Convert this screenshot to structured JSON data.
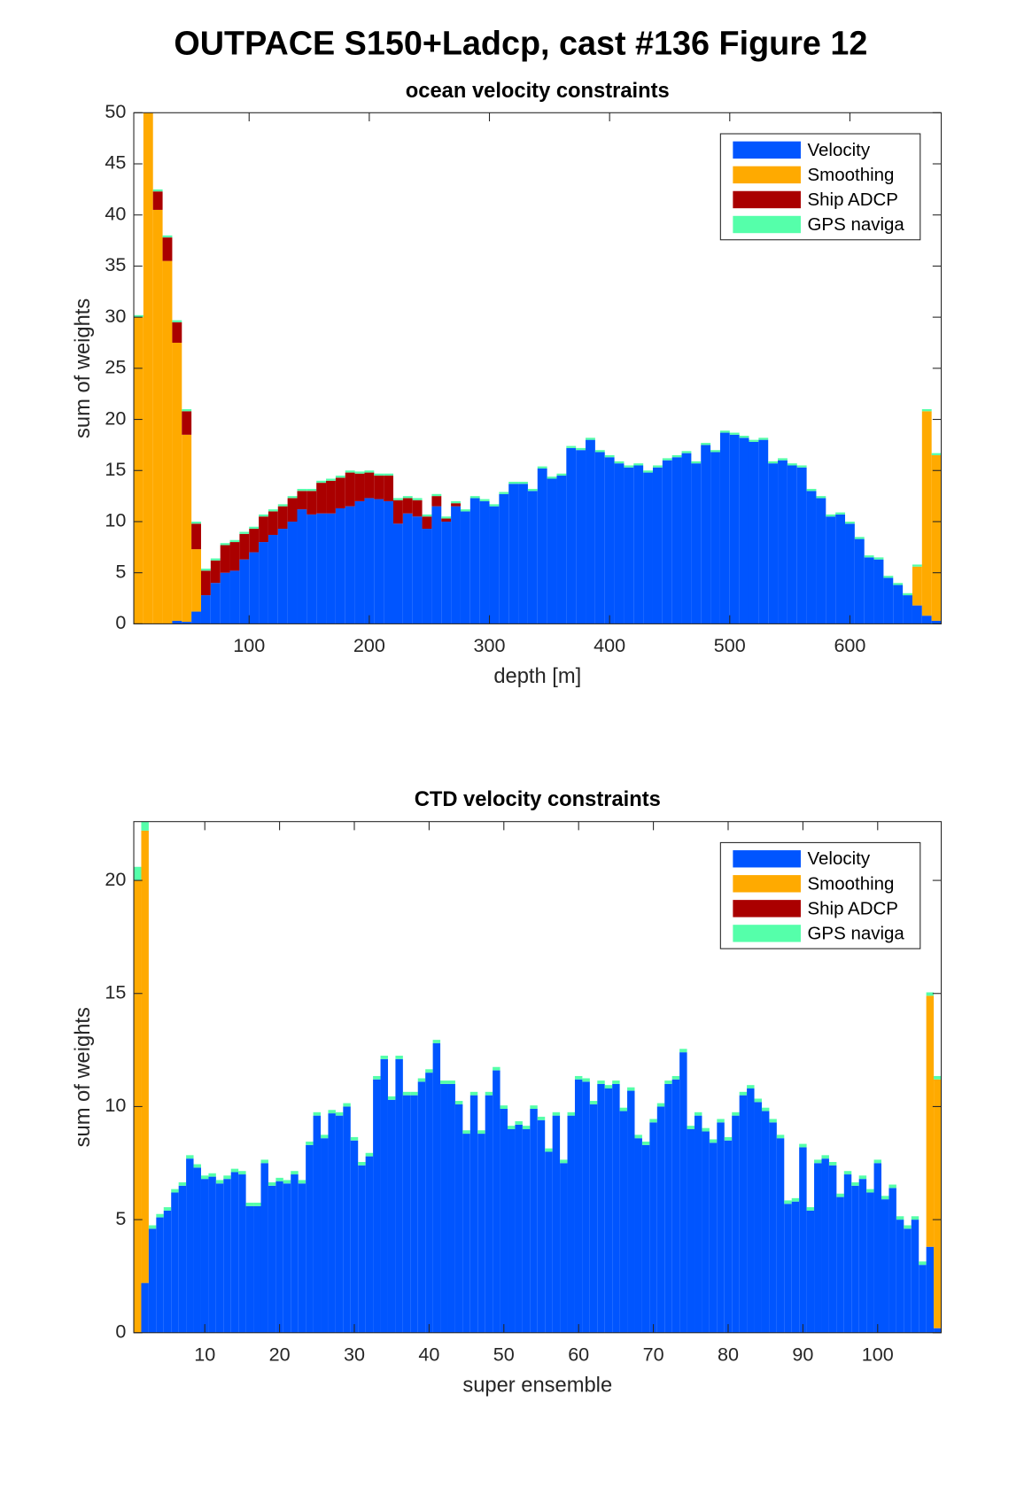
{
  "title": "OUTPACE S150+Ladcp, cast #136  Figure 12",
  "chart_data": [
    {
      "type": "bar",
      "stacked": true,
      "title": "ocean velocity constraints",
      "x_label": "depth [m]",
      "y_label": "sum of weights",
      "x": [
        8,
        16,
        24,
        32,
        40,
        48,
        56,
        64,
        72,
        80,
        88,
        96,
        104,
        112,
        120,
        128,
        136,
        144,
        152,
        160,
        168,
        176,
        184,
        192,
        200,
        208,
        216,
        224,
        232,
        240,
        248,
        256,
        264,
        272,
        280,
        288,
        296,
        304,
        312,
        320,
        328,
        336,
        344,
        352,
        360,
        368,
        376,
        384,
        392,
        400,
        408,
        416,
        424,
        432,
        440,
        448,
        456,
        464,
        472,
        480,
        488,
        496,
        504,
        512,
        520,
        528,
        536,
        544,
        552,
        560,
        568,
        576,
        584,
        592,
        600,
        608,
        616,
        624,
        632,
        640,
        648,
        656,
        664,
        672
      ],
      "series": [
        {
          "name": "Velocity",
          "color": "#0055ff",
          "values": [
            0,
            0,
            0,
            0,
            0.3,
            0.2,
            1.2,
            2.8,
            4,
            5,
            5.2,
            6.3,
            7,
            8,
            8.7,
            9.3,
            10,
            11.2,
            10.7,
            10.8,
            10.8,
            11.3,
            11.5,
            12,
            12.3,
            12.2,
            12,
            9.8,
            10.8,
            10.5,
            9.3,
            11.5,
            10,
            11.5,
            11,
            12.3,
            12,
            11.5,
            12.7,
            13.7,
            13.7,
            13,
            15.2,
            14.2,
            14.5,
            17.2,
            17,
            18,
            16.8,
            16.3,
            15.7,
            15.3,
            15.5,
            14.8,
            15.3,
            16,
            16.3,
            16.7,
            15.7,
            17.5,
            16.8,
            18.7,
            18.5,
            18.2,
            17.8,
            18,
            15.7,
            16,
            15.5,
            15.3,
            13,
            12.3,
            10.5,
            10.7,
            9.8,
            8.3,
            6.5,
            6.3,
            4.5,
            3.8,
            2.8,
            1.8,
            0.8,
            0.3
          ]
        },
        {
          "name": "Smoothing",
          "color": "#ffaa00",
          "values": [
            30,
            50,
            40.5,
            35.5,
            27.2,
            18.3,
            6.1,
            0,
            0,
            0,
            0,
            0,
            0,
            0,
            0,
            0,
            0,
            0,
            0,
            0,
            0,
            0,
            0,
            0,
            0,
            0,
            0,
            0,
            0,
            0,
            0,
            0,
            0,
            0,
            0,
            0,
            0,
            0,
            0,
            0,
            0,
            0,
            0,
            0,
            0,
            0,
            0,
            0,
            0,
            0,
            0,
            0,
            0,
            0,
            0,
            0,
            0,
            0,
            0,
            0,
            0,
            0,
            0,
            0,
            0,
            0,
            0,
            0,
            0,
            0,
            0,
            0,
            0,
            0,
            0,
            0,
            0,
            0,
            0,
            0,
            0,
            3.8,
            20,
            16.2
          ]
        },
        {
          "name": "Ship ADCP",
          "color": "#aa0000",
          "values": [
            0,
            0,
            1.8,
            2.3,
            2,
            2.3,
            2.5,
            2.4,
            2.2,
            2.7,
            2.8,
            2.5,
            2.3,
            2.5,
            2.3,
            2.2,
            2.3,
            1.8,
            2.3,
            3,
            3.2,
            3,
            3.3,
            2.7,
            2.5,
            2.3,
            2.5,
            2.3,
            1.5,
            1.6,
            1.2,
            1,
            0.3,
            0.3,
            0,
            0,
            0,
            0,
            0,
            0,
            0,
            0,
            0,
            0,
            0,
            0,
            0,
            0,
            0,
            0,
            0,
            0,
            0,
            0,
            0,
            0,
            0,
            0,
            0,
            0,
            0,
            0,
            0,
            0,
            0,
            0,
            0,
            0,
            0,
            0,
            0,
            0,
            0,
            0,
            0,
            0,
            0,
            0,
            0,
            0,
            0,
            0,
            0,
            0
          ]
        },
        {
          "name": "GPS naviga",
          "color": "#55ffaa",
          "values": [
            0.2,
            0.2,
            0.2,
            0.2,
            0.2,
            0.2,
            0.2,
            0.2,
            0.2,
            0.2,
            0.2,
            0.2,
            0.2,
            0.2,
            0.2,
            0.2,
            0.2,
            0.2,
            0.2,
            0.2,
            0.2,
            0.2,
            0.2,
            0.2,
            0.2,
            0.2,
            0.2,
            0.2,
            0.2,
            0.2,
            0.2,
            0.2,
            0.2,
            0.2,
            0.2,
            0.2,
            0.2,
            0.2,
            0.2,
            0.2,
            0.2,
            0.2,
            0.2,
            0.2,
            0.2,
            0.2,
            0.2,
            0.2,
            0.2,
            0.2,
            0.2,
            0.2,
            0.2,
            0.2,
            0.2,
            0.2,
            0.2,
            0.2,
            0.2,
            0.2,
            0.2,
            0.2,
            0.2,
            0.2,
            0.2,
            0.2,
            0.2,
            0.2,
            0.2,
            0.2,
            0.2,
            0.2,
            0.2,
            0.2,
            0.2,
            0.2,
            0.2,
            0.2,
            0.2,
            0.2,
            0.2,
            0.2,
            0.2,
            0.2
          ]
        }
      ],
      "xlim": [
        4,
        676
      ],
      "ylim": [
        0,
        50
      ],
      "xticks": [
        100,
        200,
        300,
        400,
        500,
        600
      ],
      "yticks": [
        0,
        5,
        10,
        15,
        20,
        25,
        30,
        35,
        40,
        45,
        50
      ],
      "legend": "top-right"
    },
    {
      "type": "bar",
      "stacked": true,
      "title": "CTD velocity constraints",
      "x_label": "super ensemble",
      "y_label": "sum of weights",
      "x": [
        1,
        2,
        3,
        4,
        5,
        6,
        7,
        8,
        9,
        10,
        11,
        12,
        13,
        14,
        15,
        16,
        17,
        18,
        19,
        20,
        21,
        22,
        23,
        24,
        25,
        26,
        27,
        28,
        29,
        30,
        31,
        32,
        33,
        34,
        35,
        36,
        37,
        38,
        39,
        40,
        41,
        42,
        43,
        44,
        45,
        46,
        47,
        48,
        49,
        50,
        51,
        52,
        53,
        54,
        55,
        56,
        57,
        58,
        59,
        60,
        61,
        62,
        63,
        64,
        65,
        66,
        67,
        68,
        69,
        70,
        71,
        72,
        73,
        74,
        75,
        76,
        77,
        78,
        79,
        80,
        81,
        82,
        83,
        84,
        85,
        86,
        87,
        88,
        89,
        90,
        91,
        92,
        93,
        94,
        95,
        96,
        97,
        98,
        99,
        100,
        101,
        102,
        103,
        104,
        105,
        106,
        107,
        108
      ],
      "series": [
        {
          "name": "Velocity",
          "color": "#0055ff",
          "values": [
            0,
            2.2,
            4.6,
            5.1,
            5.4,
            6.2,
            6.5,
            7.7,
            7.3,
            6.8,
            6.9,
            6.6,
            6.8,
            7.1,
            7.0,
            5.6,
            5.6,
            7.5,
            6.5,
            6.7,
            6.6,
            7.0,
            6.6,
            8.3,
            9.6,
            8.6,
            9.7,
            9.6,
            10.0,
            8.5,
            7.4,
            7.8,
            11.2,
            12.1,
            10.3,
            12.1,
            10.5,
            10.5,
            11.1,
            11.5,
            12.8,
            11,
            11,
            10.1,
            8.8,
            10.5,
            8.8,
            10.5,
            11.6,
            9.9,
            9.0,
            9.2,
            9.0,
            9.9,
            9.4,
            8.0,
            9.6,
            7.5,
            9.6,
            11.2,
            11.1,
            10.1,
            11.0,
            10.8,
            11.0,
            9.8,
            10.7,
            8.6,
            8.3,
            9.3,
            10.0,
            11.0,
            11.2,
            12.4,
            9.0,
            9.6,
            8.9,
            8.4,
            9.3,
            8.5,
            9.6,
            10.5,
            10.8,
            10.2,
            9.8,
            9.3,
            8.6,
            5.7,
            5.8,
            8.2,
            5.4,
            7.5,
            7.7,
            7.4,
            6.0,
            7.0,
            6.5,
            6.8,
            6.2,
            7.5,
            5.9,
            6.4,
            5.0,
            4.6,
            5.0,
            3.0,
            3.8,
            0.2
          ]
        },
        {
          "name": "Smoothing",
          "color": "#ffaa00",
          "values": [
            20,
            20,
            0,
            0,
            0,
            0,
            0,
            0,
            0,
            0,
            0,
            0,
            0,
            0,
            0,
            0,
            0,
            0,
            0,
            0,
            0,
            0,
            0,
            0,
            0,
            0,
            0,
            0,
            0,
            0,
            0,
            0,
            0,
            0,
            0,
            0,
            0,
            0,
            0,
            0,
            0,
            0,
            0,
            0,
            0,
            0,
            0,
            0,
            0,
            0,
            0,
            0,
            0,
            0,
            0,
            0,
            0,
            0,
            0,
            0,
            0,
            0,
            0,
            0,
            0,
            0,
            0,
            0,
            0,
            0,
            0,
            0,
            0,
            0,
            0,
            0,
            0,
            0,
            0,
            0,
            0,
            0,
            0,
            0,
            0,
            0,
            0,
            0,
            0,
            0,
            0,
            0,
            0,
            0,
            0,
            0,
            0,
            0,
            0,
            0,
            0,
            0,
            0,
            0,
            0,
            0,
            11.1,
            11
          ]
        },
        {
          "name": "Ship ADCP",
          "color": "#aa0000",
          "values": [
            0,
            0,
            0,
            0,
            0,
            0,
            0,
            0,
            0,
            0,
            0,
            0,
            0,
            0,
            0,
            0,
            0,
            0,
            0,
            0,
            0,
            0,
            0,
            0,
            0,
            0,
            0,
            0,
            0,
            0,
            0,
            0,
            0,
            0,
            0,
            0,
            0,
            0,
            0,
            0,
            0,
            0,
            0,
            0,
            0,
            0,
            0,
            0,
            0,
            0,
            0,
            0,
            0,
            0,
            0,
            0,
            0,
            0,
            0,
            0,
            0,
            0,
            0,
            0,
            0,
            0,
            0,
            0,
            0,
            0,
            0,
            0,
            0,
            0,
            0,
            0,
            0,
            0,
            0,
            0,
            0,
            0,
            0,
            0,
            0,
            0,
            0,
            0,
            0,
            0,
            0,
            0,
            0,
            0,
            0,
            0,
            0,
            0,
            0,
            0,
            0,
            0,
            0,
            0,
            0,
            0,
            0,
            0
          ]
        },
        {
          "name": "GPS naviga",
          "color": "#55ffaa",
          "values": [
            0.6,
            0.4,
            0.15,
            0.15,
            0.15,
            0.15,
            0.15,
            0.15,
            0.15,
            0.15,
            0.15,
            0.15,
            0.15,
            0.15,
            0.15,
            0.15,
            0.15,
            0.15,
            0.15,
            0.15,
            0.15,
            0.15,
            0.15,
            0.15,
            0.15,
            0.15,
            0.15,
            0.15,
            0.15,
            0.15,
            0.15,
            0.15,
            0.15,
            0.15,
            0.15,
            0.15,
            0.15,
            0.15,
            0.15,
            0.15,
            0.15,
            0.15,
            0.15,
            0.15,
            0.15,
            0.15,
            0.15,
            0.15,
            0.15,
            0.15,
            0.15,
            0.15,
            0.15,
            0.15,
            0.15,
            0.15,
            0.15,
            0.15,
            0.15,
            0.15,
            0.15,
            0.15,
            0.15,
            0.15,
            0.15,
            0.15,
            0.15,
            0.15,
            0.15,
            0.15,
            0.15,
            0.15,
            0.15,
            0.15,
            0.15,
            0.15,
            0.15,
            0.15,
            0.15,
            0.15,
            0.15,
            0.15,
            0.15,
            0.15,
            0.15,
            0.15,
            0.15,
            0.15,
            0.15,
            0.15,
            0.15,
            0.15,
            0.15,
            0.15,
            0.15,
            0.15,
            0.15,
            0.15,
            0.15,
            0.15,
            0.15,
            0.15,
            0.15,
            0.15,
            0.15,
            0.15,
            0.15,
            0.15
          ]
        }
      ],
      "xlim": [
        0.5,
        108.5
      ],
      "ylim": [
        0,
        22.6
      ],
      "xticks": [
        10,
        20,
        30,
        40,
        50,
        60,
        70,
        80,
        90,
        100
      ],
      "yticks": [
        0,
        5,
        10,
        15,
        20
      ],
      "legend": "top-right"
    }
  ]
}
